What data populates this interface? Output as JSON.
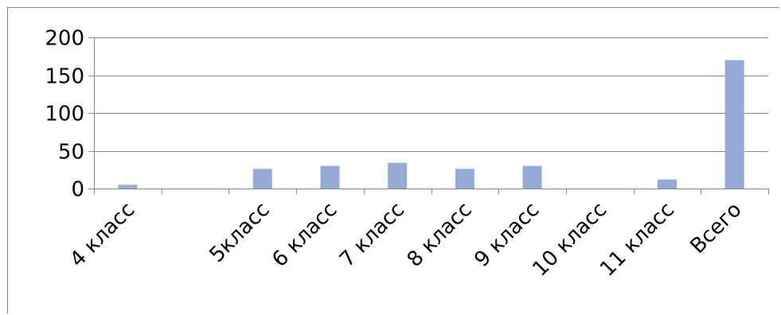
{
  "chart_data": {
    "type": "bar",
    "title": "",
    "xlabel": "",
    "ylabel": "",
    "categories": [
      "4 класс",
      "",
      "5класс",
      "6 класс",
      "7 класс",
      "8 класс",
      "9 класс",
      "10 класс",
      "11 класс",
      "Всего"
    ],
    "values": [
      5,
      0,
      26,
      30,
      34,
      26,
      30,
      0,
      12,
      170
    ],
    "ylim": [
      0,
      200
    ],
    "yticks": [
      0,
      50,
      100,
      150,
      200
    ],
    "ytick_labels": [
      "0",
      "50",
      "100",
      "150",
      "200"
    ],
    "grid": true,
    "legend": "none",
    "colors": {
      "bar": "#95abd6",
      "grid": "#868686",
      "axis": "#868686",
      "text": "#000000"
    }
  }
}
